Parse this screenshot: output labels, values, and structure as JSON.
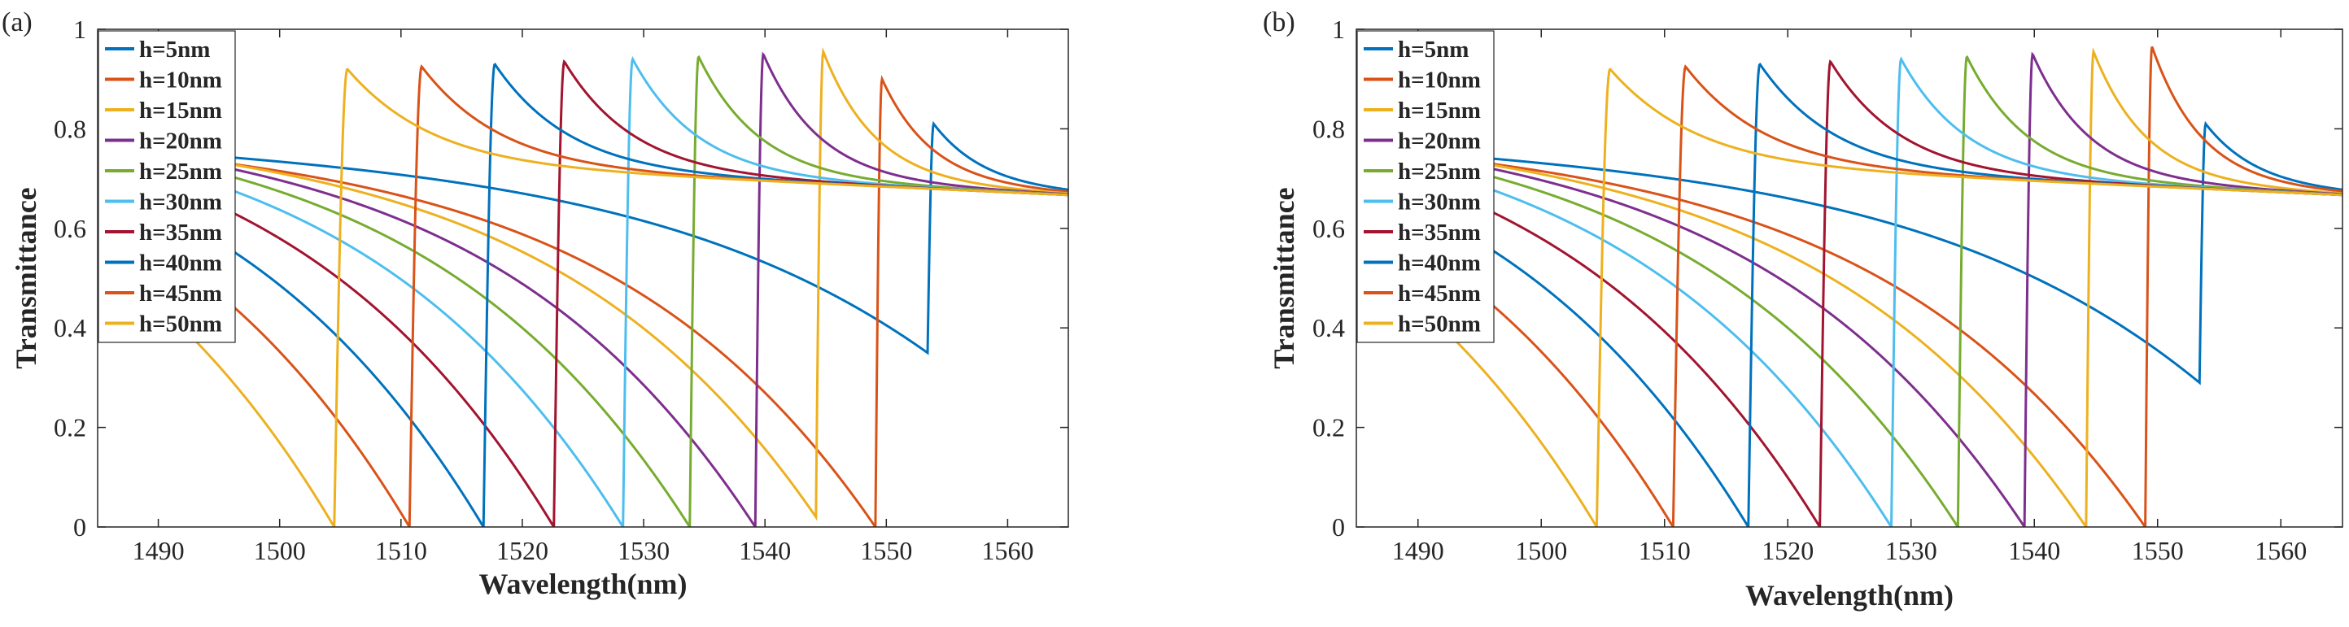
{
  "chart_data": [
    {
      "panel_label": "(a)",
      "type": "line",
      "xlabel": "Wavelength(nm)",
      "ylabel": "Transmittance",
      "xlim": [
        1485,
        1565
      ],
      "ylim": [
        0,
        1
      ],
      "xticks": [
        1490,
        1500,
        1510,
        1520,
        1530,
        1540,
        1550,
        1560
      ],
      "yticks": [
        0,
        0.2,
        0.4,
        0.6,
        0.8,
        1
      ],
      "ytick_labels": [
        "0",
        "0.2",
        "0.4",
        "0.6",
        "0.8",
        "1"
      ],
      "grid": false,
      "legend_position": "top-left",
      "series": [
        {
          "name": "h=5nm",
          "color": "#0072BD",
          "dip_wavelength": 1553.4,
          "min_transmittance": 0.35,
          "peak_transmittance": 0.81
        },
        {
          "name": "h=10nm",
          "color": "#D95319",
          "dip_wavelength": 1549.1,
          "min_transmittance": 0.0,
          "peak_transmittance": 0.9
        },
        {
          "name": "h=15nm",
          "color": "#EDB120",
          "dip_wavelength": 1544.2,
          "min_transmittance": 0.02,
          "peak_transmittance": 0.955
        },
        {
          "name": "h=20nm",
          "color": "#7E2F8E",
          "dip_wavelength": 1539.2,
          "min_transmittance": 0.0,
          "peak_transmittance": 0.95
        },
        {
          "name": "h=25nm",
          "color": "#77AC30",
          "dip_wavelength": 1533.8,
          "min_transmittance": 0.0,
          "peak_transmittance": 0.945
        },
        {
          "name": "h=30nm",
          "color": "#4DBEEE",
          "dip_wavelength": 1528.3,
          "min_transmittance": 0.0,
          "peak_transmittance": 0.94
        },
        {
          "name": "h=35nm",
          "color": "#A2142F",
          "dip_wavelength": 1522.6,
          "min_transmittance": 0.0,
          "peak_transmittance": 0.935
        },
        {
          "name": "h=40nm",
          "color": "#0072BD",
          "dip_wavelength": 1516.8,
          "min_transmittance": 0.0,
          "peak_transmittance": 0.93
        },
        {
          "name": "h=45nm",
          "color": "#D95319",
          "dip_wavelength": 1510.7,
          "min_transmittance": 0.0,
          "peak_transmittance": 0.925
        },
        {
          "name": "h=50nm",
          "color": "#EDB120",
          "dip_wavelength": 1504.5,
          "min_transmittance": 0.0,
          "peak_transmittance": 0.92
        }
      ]
    },
    {
      "panel_label": "(b)",
      "type": "line",
      "xlabel": "Wavelength(nm)",
      "ylabel": "Transmittance",
      "xlim": [
        1485,
        1565
      ],
      "ylim": [
        0,
        1
      ],
      "xticks": [
        1490,
        1500,
        1510,
        1520,
        1530,
        1540,
        1550,
        1560
      ],
      "yticks": [
        0,
        0.2,
        0.4,
        0.6,
        0.8,
        1
      ],
      "ytick_labels": [
        "0",
        "0.2",
        "0.4",
        "0.6",
        "0.8",
        "1"
      ],
      "grid": false,
      "legend_position": "top-left",
      "series": [
        {
          "name": "h=5nm",
          "color": "#0072BD",
          "dip_wavelength": 1553.4,
          "min_transmittance": 0.29,
          "peak_transmittance": 0.81
        },
        {
          "name": "h=10nm",
          "color": "#D95319",
          "dip_wavelength": 1549.0,
          "min_transmittance": 0.0,
          "peak_transmittance": 0.965
        },
        {
          "name": "h=15nm",
          "color": "#EDB120",
          "dip_wavelength": 1544.2,
          "min_transmittance": 0.0,
          "peak_transmittance": 0.955
        },
        {
          "name": "h=20nm",
          "color": "#7E2F8E",
          "dip_wavelength": 1539.2,
          "min_transmittance": 0.0,
          "peak_transmittance": 0.95
        },
        {
          "name": "h=25nm",
          "color": "#77AC30",
          "dip_wavelength": 1533.8,
          "min_transmittance": 0.0,
          "peak_transmittance": 0.945
        },
        {
          "name": "h=30nm",
          "color": "#4DBEEE",
          "dip_wavelength": 1528.4,
          "min_transmittance": 0.0,
          "peak_transmittance": 0.94
        },
        {
          "name": "h=35nm",
          "color": "#A2142F",
          "dip_wavelength": 1522.6,
          "min_transmittance": 0.0,
          "peak_transmittance": 0.935
        },
        {
          "name": "h=40nm",
          "color": "#0072BD",
          "dip_wavelength": 1516.8,
          "min_transmittance": 0.0,
          "peak_transmittance": 0.93
        },
        {
          "name": "h=45nm",
          "color": "#D95319",
          "dip_wavelength": 1510.7,
          "min_transmittance": 0.0,
          "peak_transmittance": 0.925
        },
        {
          "name": "h=50nm",
          "color": "#EDB120",
          "dip_wavelength": 1504.5,
          "min_transmittance": 0.0,
          "peak_transmittance": 0.92
        }
      ]
    }
  ]
}
